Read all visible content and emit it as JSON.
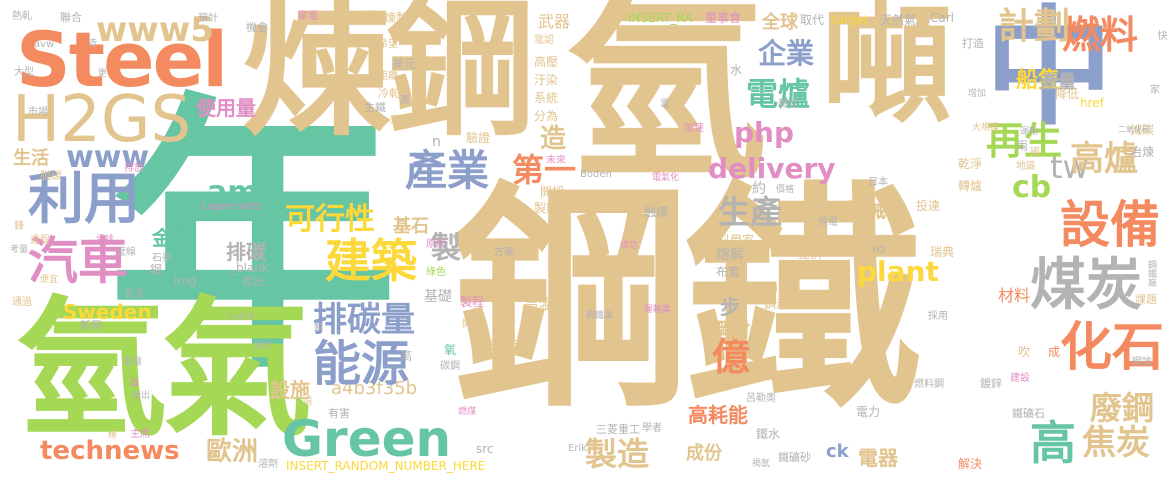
{
  "palette": {
    "tan": "#e2c48f",
    "green": "#66c5a2",
    "orange": "#f48a60",
    "blue": "#8c9fca",
    "pink": "#e18ec5",
    "lime": "#a5d854",
    "yellow": "#fcd83a",
    "grey": "#b3b3b3"
  },
  "words": {
    "w01": "鋼鐵",
    "w02": "年",
    "w03": "氫",
    "w04": "氫氣",
    "w05": "煉鋼",
    "w06": "噸",
    "w07": "中",
    "w08": "Steel",
    "w09": "H2GS",
    "w10": "www5",
    "w11": "www",
    "w12": "利用",
    "w13": "汽車",
    "w14": "建築",
    "w15": "排碳量",
    "w16": "能源",
    "w17": "Green",
    "w18": "technews",
    "w19": "產業",
    "w20": "可行性",
    "w21": "amp",
    "w22": "設備",
    "w23": "煤炭",
    "w24": "化石",
    "w25": "高",
    "w26": "燃料",
    "w27": "計劃",
    "w28": "企業",
    "w29": "電爐",
    "w30": "php",
    "w31": "delivery",
    "w32": "億",
    "w33": "生產",
    "w34": "再生",
    "w35": "高爐",
    "w36": "cb",
    "w37": "tw",
    "w38": "焦炭",
    "w39": "廢鋼",
    "w40": "歐洲",
    "w41": "製造",
    "w42": "plant",
    "w43": "第一",
    "w44": "造",
    "w45": "Sweden",
    "w46": "設施",
    "w47": "a4b3f35b",
    "w48": "使用量",
    "w49": "生活",
    "w50": "金屬",
    "w51": "排碳",
    "w52": "基石",
    "w53": "製",
    "w54": "船隻",
    "w55": "產量",
    "w56": "機械",
    "w57": "鋼材",
    "w58": "高耗能",
    "w59": "成份",
    "w60": "電器",
    "w61": "ck",
    "w62": "步",
    "w63": "全球",
    "w64": "取代",
    "w65": "target",
    "w66": "天然氣",
    "w67": "Carl",
    "w68": "INSERT_RANDOM_NUMBER_HERE",
    "w69": "Lagercrantz",
    "w70": "Boden",
    "w71": "Luleå",
    "w72": "Erik",
    "w73": "_blank",
    "w74": "zoneid",
    "w75": "img",
    "w76": "src",
    "w77": "href",
    "w78": "H2",
    "w79": "INSERT_RA",
    "w80": "n",
    "w81": "熱軋",
    "w82": "聯合",
    "w83": "預計",
    "w84": "家電",
    "w85": "來自於",
    "w86": "煉製",
    "w87": "董事會",
    "w88": "快",
    "w89": "電認",
    "w90": "武器",
    "w91": "高壓",
    "w92": "汙染",
    "w93": "系統",
    "w94": "分為",
    "w95": "驗證",
    "w96": "未來",
    "w97": "開採",
    "w98": "製鋼",
    "w99": "融煉",
    "w100": "熔解",
    "w101": "布套",
    "w102": "鋼液",
    "w103": "科學家",
    "w104": "提供",
    "w105": "瑞典",
    "w106": "鋼鐵廠",
    "w107": "課題",
    "w108": "兩",
    "w109": "地區",
    "w110": "國",
    "w111": "日本",
    "w112": "投達",
    "w113": "轉爐",
    "w114": "乾淨",
    "w115": "冶煉",
    "w116": "減碳",
    "w117": "二氧化碳",
    "w118": "大規模",
    "w119": "運輸",
    "w120": "降低",
    "w121": "打造",
    "w122": "水",
    "w123": "轉型",
    "w124": "美元",
    "w125": "距離",
    "w126": "冷軋",
    "w127": "生鐵",
    "w128": "正",
    "w129": "市場",
    "w130": "大型",
    "w131": "更",
    "w132": "脫碳",
    "w133": "排放",
    "w134": "希望",
    "w135": "機會",
    "w136": "avw",
    "w137": "造",
    "w138": "過程",
    "w139": "電流",
    "w140": "新興",
    "w141": "通過",
    "w142": "電極",
    "w143": "撥出",
    "w144": "便宜",
    "w145": "考量",
    "w146": "鋒",
    "w147": "管線",
    "w148": "雲排",
    "w149": "石墨",
    "w150": "鋼",
    "w151": "原則",
    "w152": "提出",
    "w153": "綠色",
    "w154": "方案",
    "w155": "成功",
    "w156": "電氣化",
    "w157": "價格",
    "w158": "供電",
    "w159": "製程",
    "w160": "鋼鐵業",
    "w161": "運輸業",
    "w162": "奧地利",
    "w163": "開發",
    "w164": "碳鋼",
    "w165": "燃煤",
    "w166": "有害",
    "w167": "項",
    "w168": "銷往",
    "w169": "學者",
    "w170": "三菱重工",
    "w171": "溶劑",
    "w172": "主席",
    "w173": "棒",
    "w174": "鐵水",
    "w175": "鐵礦砂",
    "w176": "褐氫",
    "w177": "氣能",
    "w178": "呂勒奧",
    "w179": "鍍鋅",
    "w180": "電力",
    "w181": "鐵礦石",
    "w182": "解決",
    "w183": "燃料鋼",
    "w184": "建設",
    "w185": "吹",
    "w186": "成",
    "w187": "鋼搶",
    "w188": "材料",
    "w189": "達",
    "w190": "採用",
    "w191": "高溫",
    "w192": "基礎",
    "w193": "約",
    "w194": "增加",
    "w195": "家",
    "w196": "高",
    "w197": "加速",
    "w198": "氧",
    "w199": "類",
    "w200": "a",
    "w201": "產",
    "w202": "電"
  }
}
